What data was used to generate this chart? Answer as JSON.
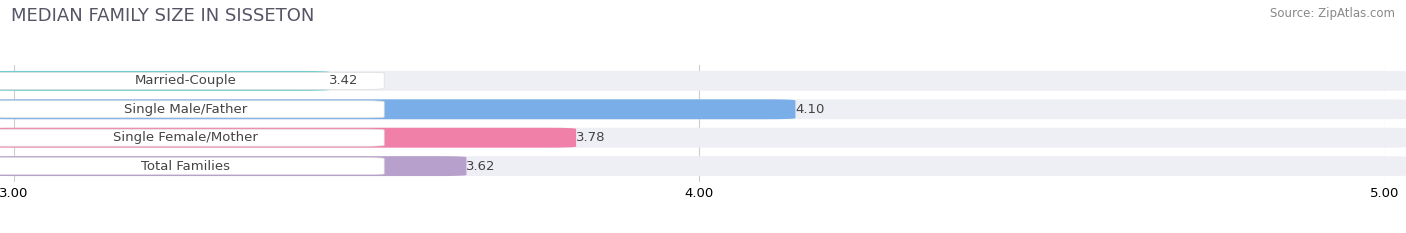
{
  "title": "MEDIAN FAMILY SIZE IN SISSETON",
  "source": "Source: ZipAtlas.com",
  "categories": [
    "Married-Couple",
    "Single Male/Father",
    "Single Female/Mother",
    "Total Families"
  ],
  "values": [
    3.42,
    4.1,
    3.78,
    3.62
  ],
  "bar_colors": [
    "#72cdd0",
    "#7aaee8",
    "#f080a8",
    "#b8a0cc"
  ],
  "bar_labels": [
    "3.42",
    "4.10",
    "3.78",
    "3.62"
  ],
  "xlim_min": 3.0,
  "xlim_max": 5.0,
  "xticks": [
    3.0,
    4.0,
    5.0
  ],
  "xtick_labels": [
    "3.00",
    "4.00",
    "5.00"
  ],
  "background_color": "#ffffff",
  "bar_bg_color": "#eeeef5",
  "title_fontsize": 13,
  "label_fontsize": 9.5,
  "value_fontsize": 9.5,
  "source_fontsize": 8.5,
  "title_color": "#555566",
  "source_color": "#888888",
  "value_color": "#444444",
  "label_color": "#444444"
}
